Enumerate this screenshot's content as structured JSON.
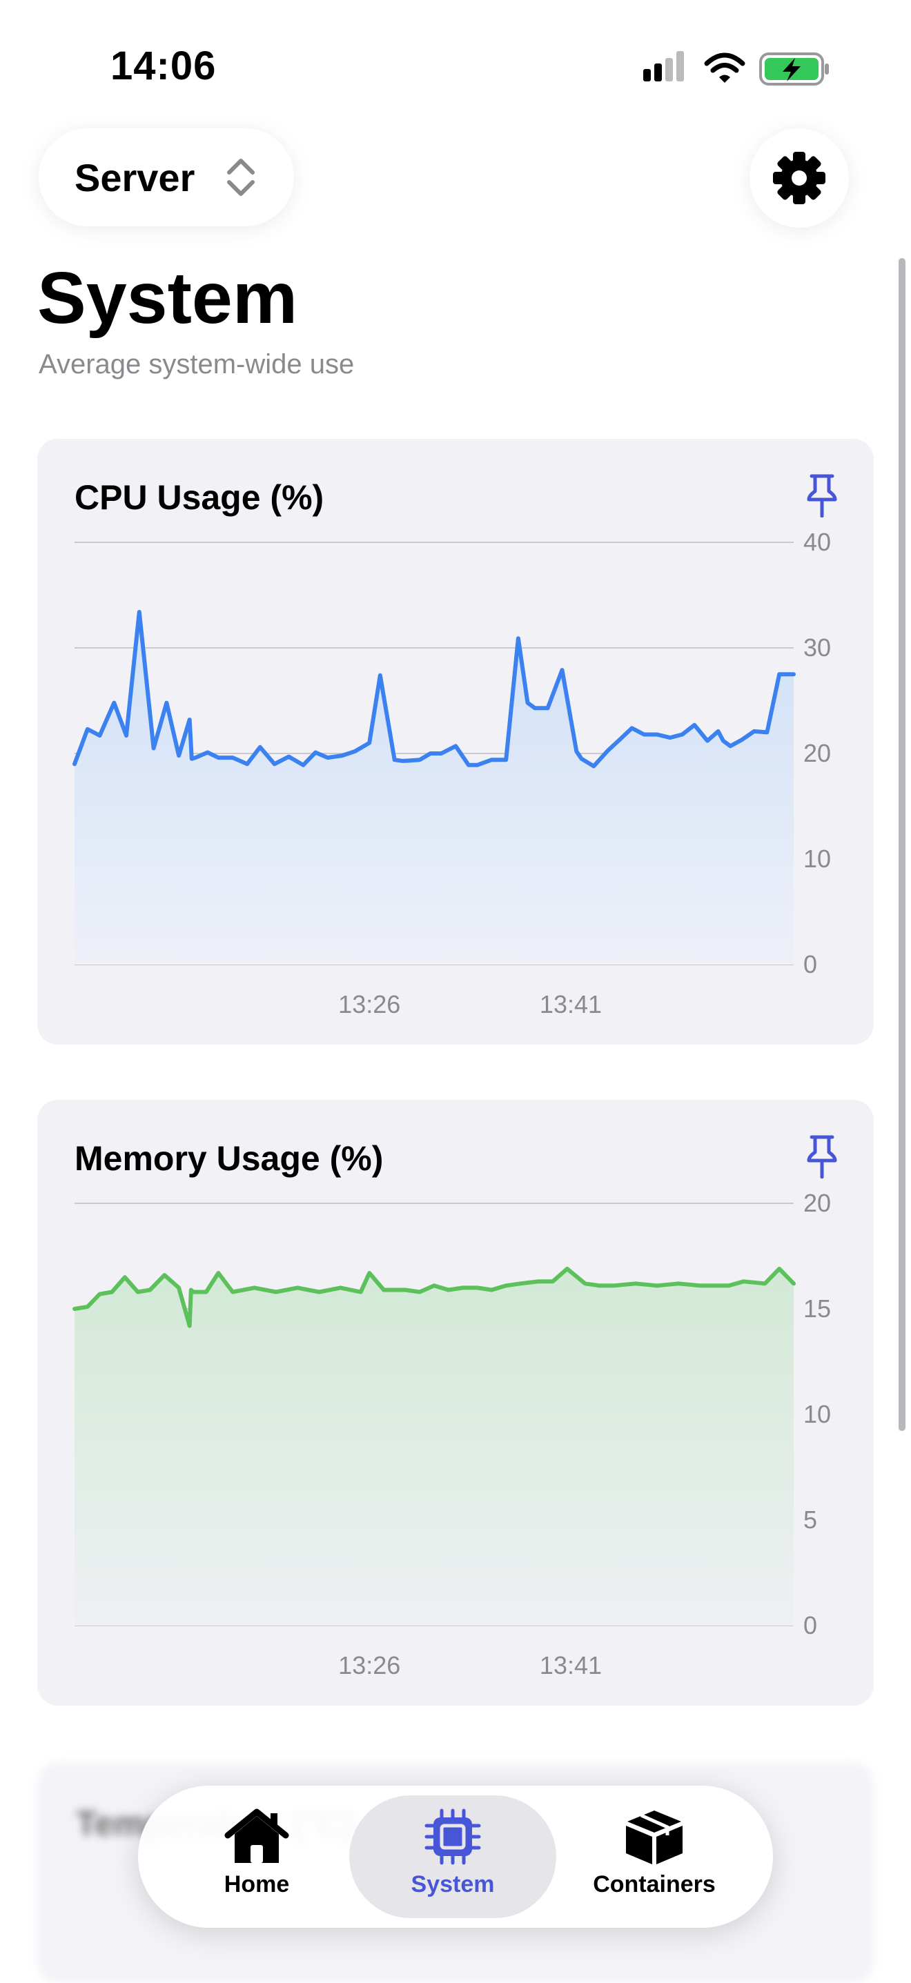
{
  "status_bar": {
    "time": "14:06"
  },
  "header": {
    "server_label": "Server"
  },
  "page": {
    "title": "System",
    "subtitle": "Average system-wide use"
  },
  "cards": [
    {
      "title": "CPU Usage (%)"
    },
    {
      "title": "Memory Usage (%)"
    },
    {
      "title": "Temperature (°C)"
    }
  ],
  "tabbar": {
    "items": [
      {
        "label": "Home"
      },
      {
        "label": "System"
      },
      {
        "label": "Containers"
      }
    ]
  },
  "colors": {
    "accent": "#4756d6",
    "cpu_line": "#3b82f0",
    "memory_line": "#5cc15a"
  },
  "chart_data": [
    {
      "type": "area",
      "title": "CPU Usage (%)",
      "ylim": [
        0,
        40
      ],
      "y_ticks": [
        0,
        10,
        20,
        30,
        40
      ],
      "x_tick_labels": [
        {
          "label": "13:26",
          "x": 0.41
        },
        {
          "label": "13:41",
          "x": 0.69
        }
      ],
      "grid": true,
      "x": [
        0,
        0.018,
        0.035,
        0.055,
        0.072,
        0.09,
        0.11,
        0.128,
        0.145,
        0.16,
        0.163,
        0.168,
        0.185,
        0.2,
        0.22,
        0.24,
        0.258,
        0.278,
        0.298,
        0.318,
        0.335,
        0.352,
        0.372,
        0.39,
        0.41,
        0.425,
        0.445,
        0.455,
        0.46,
        0.48,
        0.495,
        0.51,
        0.53,
        0.548,
        0.56,
        0.58,
        0.6,
        0.617,
        0.63,
        0.64,
        0.658,
        0.678,
        0.698,
        0.705,
        0.722,
        0.742,
        0.758,
        0.775,
        0.792,
        0.81,
        0.828,
        0.845,
        0.862,
        0.88,
        0.895,
        0.902,
        0.912,
        0.928,
        0.945,
        0.963,
        0.98,
        1
      ],
      "values": [
        19,
        22.3,
        21.7,
        24.8,
        21.7,
        33.4,
        20.5,
        24.8,
        19.8,
        23.2,
        19.5,
        19.6,
        20.1,
        19.6,
        19.6,
        19,
        20.6,
        19,
        19.7,
        18.9,
        20.1,
        19.6,
        19.8,
        20.2,
        21,
        27.4,
        19.4,
        19.3,
        19.3,
        19.4,
        20,
        20,
        20.7,
        18.9,
        18.9,
        19.4,
        19.4,
        30.9,
        24.8,
        24.3,
        24.3,
        27.9,
        20.2,
        19.5,
        18.8,
        20.3,
        21.3,
        22.4,
        21.8,
        21.8,
        21.5,
        21.8,
        22.7,
        21.2,
        22.1,
        21.2,
        20.7,
        21.3,
        22.1,
        22,
        27.5,
        27.5
      ]
    },
    {
      "type": "area",
      "title": "Memory Usage (%)",
      "ylim": [
        0,
        20
      ],
      "y_ticks": [
        0,
        5,
        10,
        15,
        20
      ],
      "x_tick_labels": [
        {
          "label": "13:26",
          "x": 0.41
        },
        {
          "label": "13:41",
          "x": 0.69
        }
      ],
      "grid": true,
      "x": [
        0,
        0.018,
        0.035,
        0.052,
        0.07,
        0.088,
        0.105,
        0.125,
        0.145,
        0.16,
        0.162,
        0.165,
        0.183,
        0.2,
        0.22,
        0.25,
        0.28,
        0.31,
        0.34,
        0.37,
        0.398,
        0.41,
        0.43,
        0.46,
        0.48,
        0.5,
        0.52,
        0.54,
        0.56,
        0.58,
        0.6,
        0.62,
        0.645,
        0.665,
        0.685,
        0.71,
        0.73,
        0.75,
        0.78,
        0.81,
        0.84,
        0.87,
        0.89,
        0.91,
        0.93,
        0.96,
        0.98,
        1
      ],
      "values": [
        15,
        15.1,
        15.7,
        15.8,
        16.5,
        15.8,
        15.9,
        16.6,
        16,
        14.2,
        15.9,
        15.8,
        15.8,
        16.7,
        15.8,
        16,
        15.8,
        16,
        15.8,
        16,
        15.8,
        16.7,
        15.9,
        15.9,
        15.8,
        16.1,
        15.9,
        16,
        16,
        15.9,
        16.1,
        16.2,
        16.3,
        16.3,
        16.9,
        16.2,
        16.1,
        16.1,
        16.2,
        16.1,
        16.2,
        16.1,
        16.1,
        16.1,
        16.3,
        16.2,
        16.9,
        16.2
      ]
    }
  ]
}
